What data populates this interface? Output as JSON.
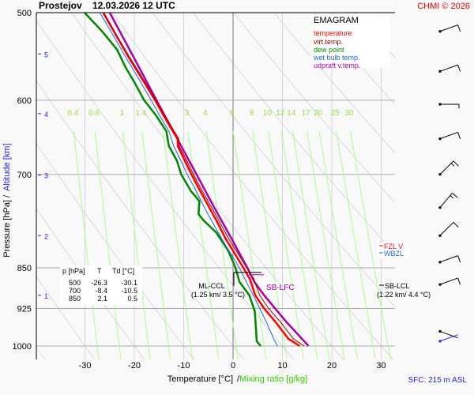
{
  "header": {
    "station": "Prostejov",
    "datetime": "12.03.2026 12 UTC",
    "copyright": "CHMI © 2026"
  },
  "footer": {
    "surface": "SFC: 215 m ASL"
  },
  "chart_data": {
    "type": "line",
    "title": "EMAGRAM",
    "xlabel": "Temperature [°C]",
    "xlabel_secondary": "Mixing ratio [g/kg]",
    "ylabel": "Pressure [hPa]",
    "ylabel_secondary": "Altitude [km]",
    "xlim": [
      -38,
      33
    ],
    "ylim": [
      1000,
      500
    ],
    "x_ticks": [
      -30,
      -20,
      -10,
      0,
      10,
      20,
      30
    ],
    "pressure_ticks": [
      500,
      600,
      700,
      850,
      925,
      1000
    ],
    "altitude_ticks": [
      {
        "km": 5,
        "p": 545
      },
      {
        "km": 4,
        "p": 617
      },
      {
        "km": 3,
        "p": 701
      },
      {
        "km": 2,
        "p": 795
      },
      {
        "km": 1,
        "p": 900
      }
    ],
    "mixing_ratio_labels": [
      "0.4",
      "0.6",
      "1",
      "1.4",
      "3",
      "4",
      "6",
      "8",
      "10",
      "12",
      "14",
      "17",
      "20",
      "25",
      "30"
    ],
    "mixing_ratio_values": [
      0.4,
      0.6,
      1,
      1.4,
      2,
      3,
      4,
      6,
      8,
      10,
      12,
      14,
      17,
      20,
      25,
      30
    ],
    "legend": [
      {
        "label": "temperature",
        "color": "#ff0000"
      },
      {
        "label": "virt.temp.",
        "color": "#990000"
      },
      {
        "label": "dew point",
        "color": "#008800"
      },
      {
        "label": "wet bulb temp.",
        "color": "#2266dd"
      },
      {
        "label": "udpraft v.temp.",
        "color": "#aa00aa"
      }
    ],
    "series": [
      {
        "name": "temperature",
        "points": [
          [
            1000,
            13.5
          ],
          [
            985,
            11.2
          ],
          [
            950,
            8.5
          ],
          [
            925,
            6.3
          ],
          [
            900,
            4.5
          ],
          [
            870,
            3.4
          ],
          [
            850,
            2.1
          ],
          [
            800,
            -1.5
          ],
          [
            770,
            -3.4
          ],
          [
            750,
            -4.8
          ],
          [
            720,
            -7.0
          ],
          [
            700,
            -8.4
          ],
          [
            680,
            -9.8
          ],
          [
            660,
            -11.2
          ],
          [
            650,
            -11.2
          ],
          [
            640,
            -12.2
          ],
          [
            620,
            -14.0
          ],
          [
            600,
            -15.8
          ],
          [
            575,
            -18.3
          ],
          [
            550,
            -21.0
          ],
          [
            525,
            -23.6
          ],
          [
            500,
            -26.3
          ]
        ]
      },
      {
        "name": "virt.temp.",
        "points": [
          [
            1000,
            14.4
          ],
          [
            985,
            12.2
          ],
          [
            950,
            9.5
          ],
          [
            925,
            7.2
          ],
          [
            900,
            5.4
          ],
          [
            870,
            4.2
          ],
          [
            850,
            2.8
          ],
          [
            800,
            -0.9
          ],
          [
            770,
            -2.9
          ],
          [
            750,
            -4.3
          ],
          [
            720,
            -6.6
          ],
          [
            700,
            -8.0
          ],
          [
            680,
            -9.4
          ],
          [
            660,
            -10.9
          ],
          [
            650,
            -11.0
          ],
          [
            640,
            -11.9
          ],
          [
            620,
            -13.8
          ],
          [
            600,
            -15.6
          ],
          [
            575,
            -18.1
          ],
          [
            550,
            -20.8
          ],
          [
            525,
            -23.5
          ],
          [
            500,
            -26.2
          ]
        ]
      },
      {
        "name": "dew point",
        "points": [
          [
            1000,
            5.6
          ],
          [
            990,
            4.8
          ],
          [
            960,
            4.6
          ],
          [
            930,
            4.4
          ],
          [
            900,
            3.3
          ],
          [
            875,
            1.3
          ],
          [
            850,
            0.5
          ],
          [
            820,
            -1.0
          ],
          [
            790,
            -3.4
          ],
          [
            770,
            -6.0
          ],
          [
            760,
            -7.0
          ],
          [
            740,
            -6.8
          ],
          [
            725,
            -8.5
          ],
          [
            700,
            -10.5
          ],
          [
            680,
            -11.4
          ],
          [
            660,
            -13.0
          ],
          [
            640,
            -13.5
          ],
          [
            620,
            -15.5
          ],
          [
            600,
            -18.0
          ],
          [
            580,
            -19.8
          ],
          [
            560,
            -21.8
          ],
          [
            540,
            -23.5
          ],
          [
            520,
            -26.5
          ],
          [
            500,
            -30.1
          ]
        ]
      },
      {
        "name": "wet bulb temp.",
        "points": [
          [
            1000,
            9.0
          ],
          [
            985,
            8.2
          ],
          [
            950,
            6.7
          ],
          [
            925,
            5.4
          ],
          [
            900,
            4.1
          ],
          [
            870,
            2.4
          ],
          [
            850,
            1.3
          ],
          [
            800,
            -2.3
          ],
          [
            770,
            -4.4
          ],
          [
            750,
            -5.8
          ],
          [
            720,
            -7.8
          ],
          [
            700,
            -9.3
          ],
          [
            680,
            -10.6
          ],
          [
            660,
            -12.0
          ],
          [
            640,
            -13.0
          ],
          [
            620,
            -14.8
          ],
          [
            600,
            -16.6
          ],
          [
            575,
            -19.0
          ],
          [
            550,
            -21.6
          ],
          [
            525,
            -24.2
          ],
          [
            500,
            -27.0
          ]
        ]
      },
      {
        "name": "udpraft v.temp.",
        "points": [
          [
            1000,
            15.3
          ],
          [
            950,
            10.7
          ],
          [
            900,
            6.3
          ],
          [
            875,
            4.3
          ],
          [
            850,
            2.9
          ],
          [
            800,
            -0.3
          ],
          [
            750,
            -3.8
          ],
          [
            700,
            -7.4
          ],
          [
            650,
            -11.3
          ],
          [
            600,
            -15.5
          ],
          [
            550,
            -20.0
          ],
          [
            500,
            -25.0
          ]
        ]
      }
    ],
    "levels_table": {
      "headers": [
        "p [hPa]",
        "T",
        "Td [°C]"
      ],
      "rows": [
        [
          "500",
          "-26.3",
          "-30.1"
        ],
        [
          "700",
          "-8.4",
          "-10.5"
        ],
        [
          "850",
          "2.1",
          "0.5"
        ]
      ]
    },
    "annotations": {
      "ml_ccl": {
        "label": "ML-CCL",
        "detail": "(1.25 km/ 3.5 °C)",
        "p": 868
      },
      "sb_lfc": {
        "label": "SB-LFC",
        "p": 868
      },
      "sb_lcl": {
        "label": "SB-LCL",
        "detail": "(1.22 km/ 4.4 °C)",
        "p": 870
      },
      "fzl_v": {
        "label": "FZL V",
        "color": "#ff0000"
      },
      "wbzl": {
        "label": "WBZL",
        "color": "#2266dd"
      }
    },
    "wind_barbs": [
      {
        "p": 520,
        "dir": 250,
        "kt": 10
      },
      {
        "p": 565,
        "dir": 250,
        "kt": 10
      },
      {
        "p": 605,
        "dir": 270,
        "kt": 5
      },
      {
        "p": 650,
        "dir": 250,
        "kt": 10
      },
      {
        "p": 700,
        "dir": 225,
        "kt": 15
      },
      {
        "p": 750,
        "dir": 220,
        "kt": 15
      },
      {
        "p": 795,
        "dir": 225,
        "kt": 10
      },
      {
        "p": 840,
        "dir": 250,
        "kt": 10
      },
      {
        "p": 880,
        "dir": 250,
        "kt": 10
      },
      {
        "p": 970,
        "dir": 290,
        "kt": 0
      },
      {
        "p": 990,
        "dir": 250,
        "kt": 0
      }
    ]
  }
}
